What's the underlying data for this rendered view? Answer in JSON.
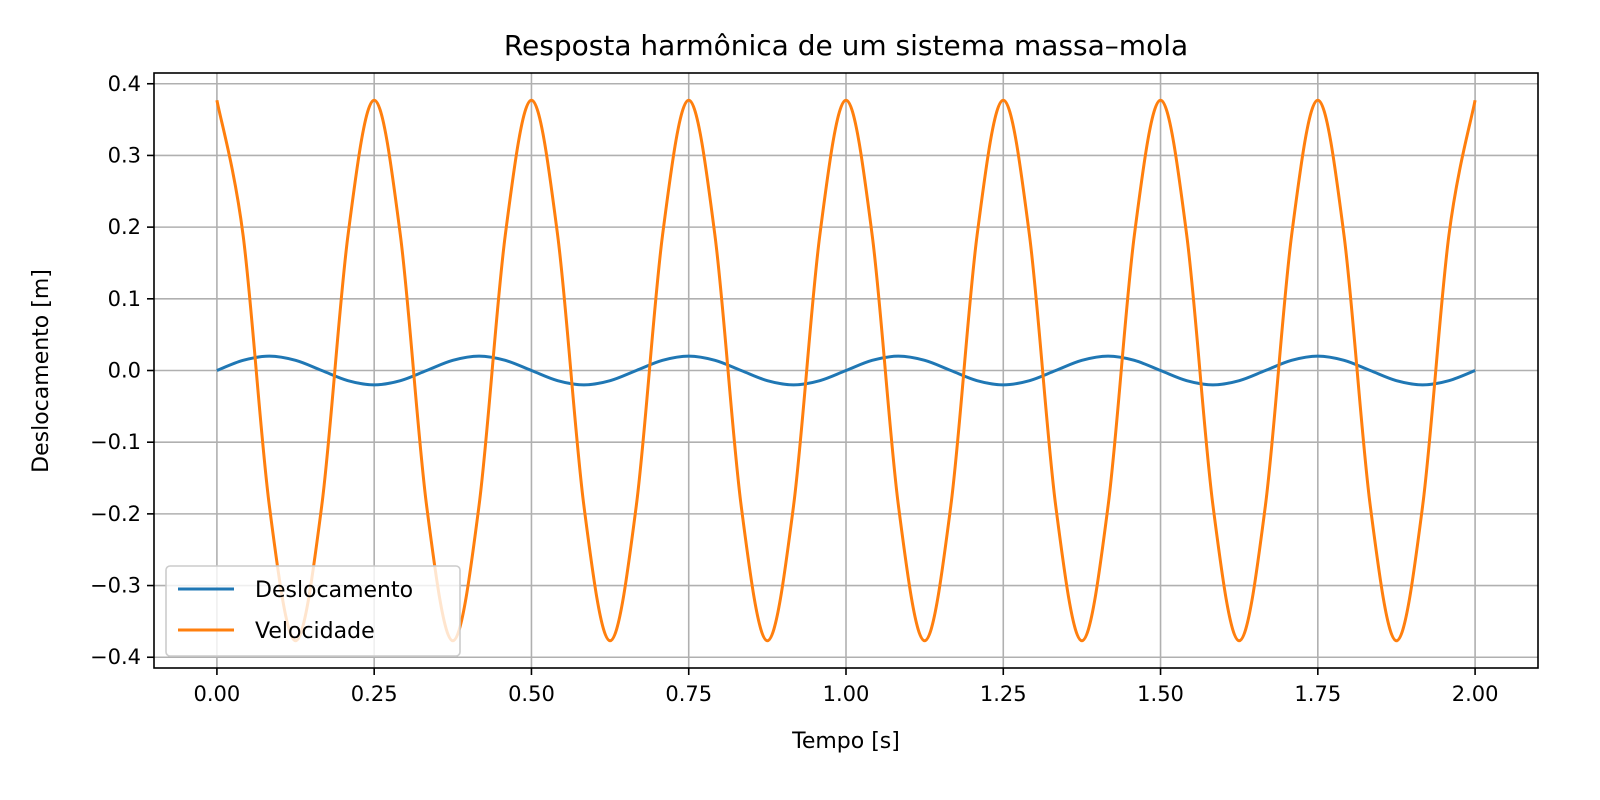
{
  "chart_data": {
    "type": "line",
    "title": "Resposta harmônica de um sistema massa–mola",
    "xlabel": "Tempo [s]",
    "ylabel": "Deslocamento [m]",
    "xlim": [
      -0.1,
      2.1
    ],
    "ylim": [
      -0.415,
      0.415
    ],
    "grid": true,
    "legend_position": "lower-left",
    "x_ticks": [
      0.0,
      0.25,
      0.5,
      0.75,
      1.0,
      1.25,
      1.5,
      1.75,
      2.0
    ],
    "x_tick_labels": [
      "0.00",
      "0.25",
      "0.50",
      "0.75",
      "1.00",
      "1.25",
      "1.50",
      "1.75",
      "2.00"
    ],
    "y_ticks": [
      -0.4,
      -0.3,
      -0.2,
      -0.1,
      0.0,
      0.1,
      0.2,
      0.3,
      0.4
    ],
    "y_tick_labels": [
      "−0.4",
      "−0.3",
      "−0.2",
      "−0.1",
      "0.0",
      "0.1",
      "0.2",
      "0.3",
      "0.4"
    ],
    "x": [
      0.0,
      0.04167,
      0.08333,
      0.125,
      0.16667,
      0.20833,
      0.25,
      0.29167,
      0.33333,
      0.375,
      0.41667,
      0.45833,
      0.5,
      0.54167,
      0.58333,
      0.625,
      0.66667,
      0.70833,
      0.75,
      0.79167,
      0.83333,
      0.875,
      0.91667,
      0.95833,
      1.0,
      1.04167,
      1.08333,
      1.125,
      1.16667,
      1.20833,
      1.25,
      1.29167,
      1.33333,
      1.375,
      1.41667,
      1.45833,
      1.5,
      1.54167,
      1.58333,
      1.625,
      1.66667,
      1.70833,
      1.75,
      1.79167,
      1.83333,
      1.875,
      1.91667,
      1.95833,
      2.0
    ],
    "series": [
      {
        "name": "Deslocamento",
        "color": "#1f77b4",
        "values": [
          0.0,
          0.01414,
          0.02,
          0.01414,
          0.0,
          -0.01414,
          -0.02,
          -0.01414,
          0.0,
          0.01414,
          0.02,
          0.01414,
          0.0,
          -0.01414,
          -0.02,
          -0.01414,
          0.0,
          0.01414,
          0.02,
          0.01414,
          0.0,
          -0.01414,
          -0.02,
          -0.01414,
          0.0,
          0.01414,
          0.02,
          0.01414,
          0.0,
          -0.01414,
          -0.02,
          -0.01414,
          0.0,
          0.01414,
          0.02,
          0.01414,
          0.0,
          -0.01414,
          -0.02,
          -0.01414,
          0.0,
          0.01414,
          0.02,
          0.01414,
          0.0,
          -0.01414,
          -0.02,
          -0.01414,
          0.0
        ]
      },
      {
        "name": "Velocidade",
        "color": "#ff7f0e",
        "values": [
          0.377,
          0.18848,
          -0.18848,
          -0.377,
          -0.18848,
          0.18848,
          0.377,
          0.18848,
          -0.18848,
          -0.377,
          -0.18848,
          0.18848,
          0.377,
          0.18848,
          -0.18848,
          -0.377,
          -0.18848,
          0.18848,
          0.377,
          0.18848,
          -0.18848,
          -0.377,
          -0.18848,
          0.18848,
          0.377,
          0.18848,
          -0.18848,
          -0.377,
          -0.18848,
          0.18848,
          0.377,
          0.18848,
          -0.18848,
          -0.377,
          -0.18848,
          0.18848,
          0.377,
          0.18848,
          -0.18848,
          -0.377,
          -0.18848,
          0.18848,
          0.377,
          0.18848,
          -0.18848,
          -0.377,
          -0.18848,
          0.18848,
          0.377
        ]
      }
    ]
  }
}
